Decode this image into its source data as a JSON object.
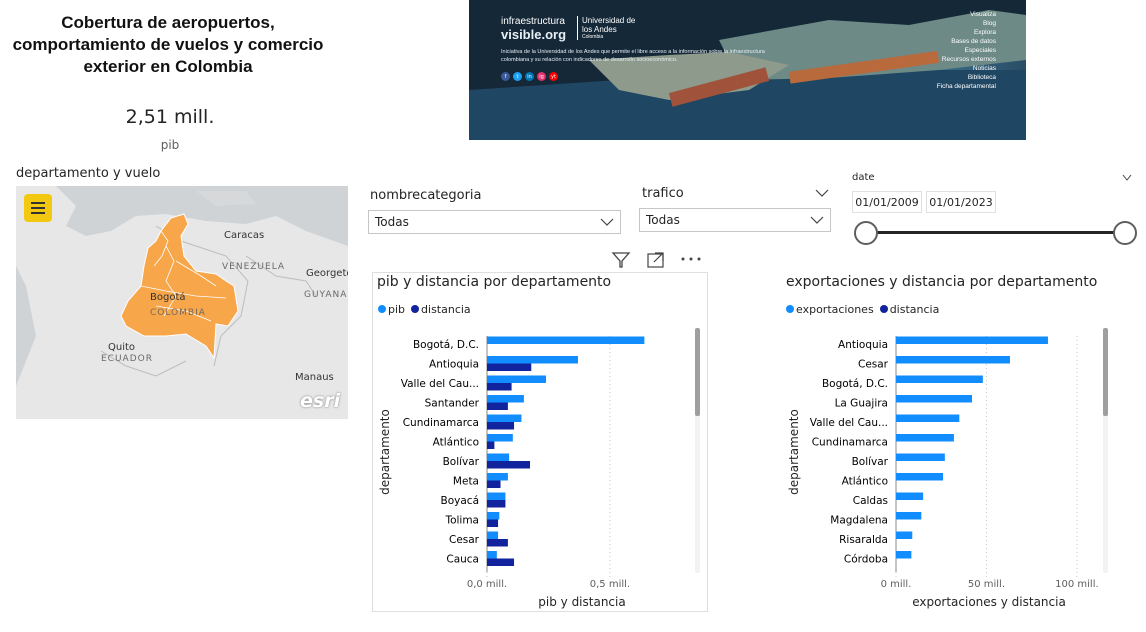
{
  "title": "Cobertura de aeropuertos, comportamiento de vuelos y comercio exterior en Colombia",
  "kpi": {
    "value": "2,51 mill.",
    "label": "pib"
  },
  "banner": {
    "logo_line1": "infraestructura",
    "logo_line2": "visible.org",
    "university": "Universidad de los Andes",
    "university_sub": "Colombia",
    "description": "Iniciativa de la Universidad de los Andes que permite el libre acceso a la información sobre la infraestructura colombiana y su relación con indicadores de desarrollo socioeconómico.",
    "menu": [
      "Visualiza",
      "Blog",
      "Explora",
      "Bases de datos",
      "Especiales",
      "Recursos externos",
      "Noticias",
      "Biblioteca",
      "Ficha departamental"
    ],
    "social": [
      "f",
      "t",
      "in",
      "ig",
      "yt"
    ]
  },
  "map": {
    "label": "departamento y vuelo",
    "menu_icon": "hamburger-icon",
    "places": [
      "Caracas",
      "VENEZUELA",
      "Georgeto",
      "GUYANA",
      "Bogotá",
      "COLOMBIA",
      "Quito",
      "ECUADOR",
      "Manaus"
    ],
    "attribution": "esri",
    "colombia_color": "#f7a64a"
  },
  "filters": {
    "nombrecategoria": {
      "label": "nombrecategoria",
      "value": "Todas"
    },
    "trafico": {
      "label": "trafico",
      "value": "Todas"
    },
    "date": {
      "label": "date",
      "start": "01/01/2009",
      "end": "01/01/2023"
    }
  },
  "colors": {
    "series1": "#118dff",
    "series2": "#12239e"
  },
  "chart_data": [
    {
      "type": "bar",
      "orientation": "horizontal",
      "title": "pib y distancia por departamento",
      "xlabel": "pib y distancia",
      "ylabel": "departamento",
      "categories": [
        "Bogotá, D.C.",
        "Antioquia",
        "Valle del Cau...",
        "Santander",
        "Cundinamarca",
        "Atlántico",
        "Bolívar",
        "Meta",
        "Boyacá",
        "Tolima",
        "Cesar",
        "Cauca"
      ],
      "series": [
        {
          "name": "pib",
          "values": [
            0.64,
            0.37,
            0.24,
            0.15,
            0.14,
            0.105,
            0.09,
            0.085,
            0.075,
            0.05,
            0.045,
            0.04
          ]
        },
        {
          "name": "distancia",
          "values": [
            0.0,
            0.18,
            0.1,
            0.085,
            0.11,
            0.03,
            0.175,
            0.055,
            0.075,
            0.045,
            0.085,
            0.11
          ]
        }
      ],
      "xticks": [
        "0,0 mill.",
        "0,5 mill."
      ],
      "xtick_values": [
        0,
        0.5
      ],
      "xlim": [
        0,
        0.85
      ]
    },
    {
      "type": "bar",
      "orientation": "horizontal",
      "title": "exportaciones y distancia por departamento",
      "xlabel": "exportaciones y distancia",
      "ylabel": "departamento",
      "categories": [
        "Antioquia",
        "Cesar",
        "Bogotá, D.C.",
        "La Guajira",
        "Valle del Cau...",
        "Cundinamarca",
        "Bolívar",
        "Atlántico",
        "Caldas",
        "Magdalena",
        "Risaralda",
        "Córdoba"
      ],
      "series": [
        {
          "name": "exportaciones",
          "values": [
            84,
            63,
            48,
            42,
            35,
            32,
            27,
            26,
            15,
            14,
            9,
            8.5
          ]
        },
        {
          "name": "distancia",
          "values": [
            0,
            0,
            0,
            0,
            0,
            0,
            0,
            0,
            0,
            0,
            0,
            0
          ]
        }
      ],
      "xticks": [
        "0 mill.",
        "50 mill.",
        "100 mill."
      ],
      "xtick_values": [
        0,
        50,
        100
      ],
      "xlim": [
        0,
        110
      ]
    }
  ]
}
